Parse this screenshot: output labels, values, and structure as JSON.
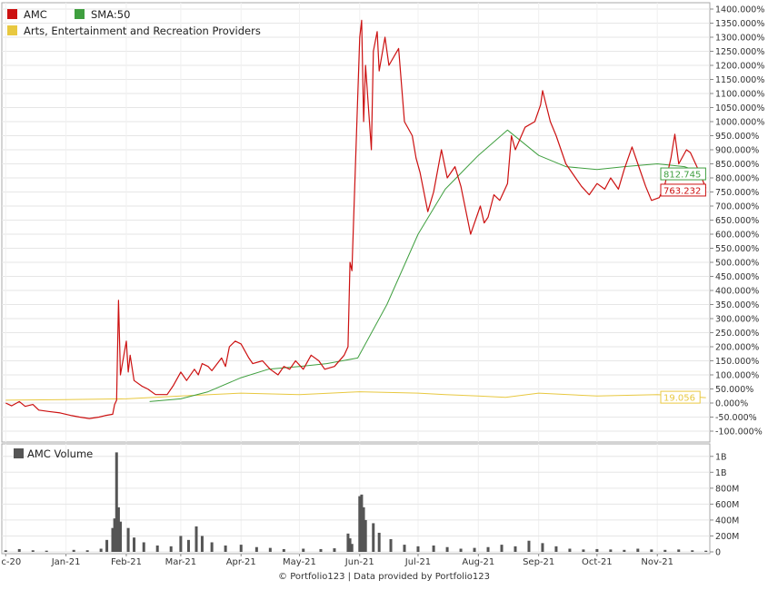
{
  "footer": "© Portfolio123 | Data provided by Portfolio123",
  "colors": {
    "amc": "#cc1111",
    "sma": "#3f9f3f",
    "industry": "#e8c840",
    "volume": "#555555",
    "grid": "#e6e6e6",
    "axis": "#888888"
  },
  "chart_data": [
    {
      "type": "line",
      "title": "",
      "legend": [
        {
          "name": "AMC",
          "color": "#cc1111"
        },
        {
          "name": "SMA:50",
          "color": "#3f9f3f"
        },
        {
          "name": "Arts, Entertainment and Recreation Providers",
          "color": "#e8c840"
        }
      ],
      "legend_position": "top-left",
      "y_unit": "%",
      "ylim": [
        -100,
        1400
      ],
      "yticks": [
        "1400.000%",
        "1350.000%",
        "1300.000%",
        "1250.000%",
        "1200.000%",
        "1150.000%",
        "1100.000%",
        "1050.000%",
        "1000.000%",
        "950.000%",
        "900.000%",
        "850.000%",
        "800.000%",
        "750.000%",
        "700.000%",
        "650.000%",
        "600.000%",
        "550.000%",
        "500.000%",
        "450.000%",
        "400.000%",
        "350.000%",
        "300.000%",
        "250.000%",
        "200.000%",
        "150.000%",
        "100.000%",
        "50.000%",
        "0.000%",
        "-50.000%",
        "-100.000%"
      ],
      "end_labels": {
        "sma": "812.745",
        "amc": "763.232",
        "industry": "19.056"
      },
      "series": [
        {
          "name": "AMC",
          "color": "#cc1111",
          "points": [
            [
              "2020-12-01",
              0
            ],
            [
              "2020-12-04",
              -10
            ],
            [
              "2020-12-08",
              5
            ],
            [
              "2020-12-11",
              -12
            ],
            [
              "2020-12-15",
              -5
            ],
            [
              "2020-12-18",
              -25
            ],
            [
              "2020-12-23",
              -30
            ],
            [
              "2020-12-29",
              -35
            ],
            [
              "2021-01-04",
              -45
            ],
            [
              "2021-01-08",
              -50
            ],
            [
              "2021-01-13",
              -55
            ],
            [
              "2021-01-18",
              -50
            ],
            [
              "2021-01-21",
              -45
            ],
            [
              "2021-01-25",
              -40
            ],
            [
              "2021-01-26",
              -5
            ],
            [
              "2021-01-27",
              10
            ],
            [
              "2021-01-28",
              365
            ],
            [
              "2021-01-29",
              100
            ],
            [
              "2021-02-01",
              220
            ],
            [
              "2021-02-02",
              110
            ],
            [
              "2021-02-03",
              170
            ],
            [
              "2021-02-05",
              80
            ],
            [
              "2021-02-09",
              60
            ],
            [
              "2021-02-12",
              50
            ],
            [
              "2021-02-16",
              30
            ],
            [
              "2021-02-22",
              30
            ],
            [
              "2021-02-25",
              60
            ],
            [
              "2021-03-01",
              110
            ],
            [
              "2021-03-04",
              80
            ],
            [
              "2021-03-08",
              120
            ],
            [
              "2021-03-10",
              100
            ],
            [
              "2021-03-12",
              140
            ],
            [
              "2021-03-15",
              130
            ],
            [
              "2021-03-17",
              115
            ],
            [
              "2021-03-22",
              160
            ],
            [
              "2021-03-24",
              130
            ],
            [
              "2021-03-26",
              200
            ],
            [
              "2021-03-29",
              220
            ],
            [
              "2021-04-01",
              210
            ],
            [
              "2021-04-05",
              160
            ],
            [
              "2021-04-07",
              140
            ],
            [
              "2021-04-12",
              150
            ],
            [
              "2021-04-16",
              120
            ],
            [
              "2021-04-20",
              100
            ],
            [
              "2021-04-23",
              130
            ],
            [
              "2021-04-26",
              120
            ],
            [
              "2021-04-29",
              150
            ],
            [
              "2021-05-03",
              120
            ],
            [
              "2021-05-07",
              170
            ],
            [
              "2021-05-11",
              150
            ],
            [
              "2021-05-14",
              120
            ],
            [
              "2021-05-19",
              130
            ],
            [
              "2021-05-24",
              170
            ],
            [
              "2021-05-26",
              200
            ],
            [
              "2021-05-27",
              500
            ],
            [
              "2021-05-28",
              470
            ],
            [
              "2021-06-01",
              1300
            ],
            [
              "2021-06-02",
              1360
            ],
            [
              "2021-06-03",
              1000
            ],
            [
              "2021-06-04",
              1200
            ],
            [
              "2021-06-07",
              900
            ],
            [
              "2021-06-08",
              1250
            ],
            [
              "2021-06-10",
              1320
            ],
            [
              "2021-06-11",
              1180
            ],
            [
              "2021-06-14",
              1300
            ],
            [
              "2021-06-16",
              1200
            ],
            [
              "2021-06-21",
              1260
            ],
            [
              "2021-06-24",
              1000
            ],
            [
              "2021-06-28",
              950
            ],
            [
              "2021-06-30",
              870
            ],
            [
              "2021-07-02",
              820
            ],
            [
              "2021-07-06",
              680
            ],
            [
              "2021-07-09",
              750
            ],
            [
              "2021-07-13",
              900
            ],
            [
              "2021-07-16",
              800
            ],
            [
              "2021-07-20",
              840
            ],
            [
              "2021-07-23",
              770
            ],
            [
              "2021-07-28",
              600
            ],
            [
              "2021-08-02",
              700
            ],
            [
              "2021-08-04",
              640
            ],
            [
              "2021-08-06",
              660
            ],
            [
              "2021-08-09",
              740
            ],
            [
              "2021-08-12",
              720
            ],
            [
              "2021-08-16",
              780
            ],
            [
              "2021-08-18",
              950
            ],
            [
              "2021-08-20",
              900
            ],
            [
              "2021-08-25",
              980
            ],
            [
              "2021-08-30",
              1000
            ],
            [
              "2021-09-02",
              1060
            ],
            [
              "2021-09-03",
              1110
            ],
            [
              "2021-09-07",
              1000
            ],
            [
              "2021-09-10",
              950
            ],
            [
              "2021-09-15",
              850
            ],
            [
              "2021-09-20",
              800
            ],
            [
              "2021-09-23",
              770
            ],
            [
              "2021-09-27",
              740
            ],
            [
              "2021-10-01",
              780
            ],
            [
              "2021-10-05",
              760
            ],
            [
              "2021-10-08",
              800
            ],
            [
              "2021-10-12",
              760
            ],
            [
              "2021-10-15",
              830
            ],
            [
              "2021-10-19",
              910
            ],
            [
              "2021-10-22",
              850
            ],
            [
              "2021-10-26",
              770
            ],
            [
              "2021-10-29",
              720
            ],
            [
              "2021-11-02",
              730
            ],
            [
              "2021-11-05",
              780
            ],
            [
              "2021-11-08",
              870
            ],
            [
              "2021-11-10",
              955
            ],
            [
              "2021-11-12",
              850
            ],
            [
              "2021-11-16",
              900
            ],
            [
              "2021-11-18",
              890
            ],
            [
              "2021-11-22",
              830
            ],
            [
              "2021-11-26",
              763.232
            ]
          ]
        },
        {
          "name": "SMA:50",
          "color": "#3f9f3f",
          "points": [
            [
              "2021-02-13",
              5
            ],
            [
              "2021-03-01",
              15
            ],
            [
              "2021-03-15",
              40
            ],
            [
              "2021-04-01",
              90
            ],
            [
              "2021-04-15",
              120
            ],
            [
              "2021-05-01",
              130
            ],
            [
              "2021-05-15",
              140
            ],
            [
              "2021-05-31",
              160
            ],
            [
              "2021-06-15",
              350
            ],
            [
              "2021-07-01",
              600
            ],
            [
              "2021-07-15",
              760
            ],
            [
              "2021-08-01",
              880
            ],
            [
              "2021-08-16",
              970
            ],
            [
              "2021-09-01",
              880
            ],
            [
              "2021-09-15",
              840
            ],
            [
              "2021-10-01",
              830
            ],
            [
              "2021-10-15",
              840
            ],
            [
              "2021-11-01",
              850
            ],
            [
              "2021-11-15",
              840
            ],
            [
              "2021-11-26",
              812.745
            ]
          ]
        },
        {
          "name": "Arts, Entertainment and Recreation Providers",
          "color": "#e8c840",
          "points": [
            [
              "2020-12-01",
              10
            ],
            [
              "2021-01-01",
              12
            ],
            [
              "2021-02-01",
              15
            ],
            [
              "2021-03-01",
              25
            ],
            [
              "2021-04-01",
              35
            ],
            [
              "2021-05-01",
              30
            ],
            [
              "2021-06-01",
              40
            ],
            [
              "2021-07-01",
              35
            ],
            [
              "2021-07-15",
              30
            ],
            [
              "2021-08-01",
              25
            ],
            [
              "2021-08-15",
              20
            ],
            [
              "2021-09-01",
              35
            ],
            [
              "2021-10-01",
              25
            ],
            [
              "2021-11-01",
              30
            ],
            [
              "2021-11-26",
              19.056
            ]
          ]
        }
      ]
    },
    {
      "type": "bar",
      "title": "",
      "legend": [
        {
          "name": "AMC Volume",
          "color": "#555555"
        }
      ],
      "legend_position": "top-left",
      "ylim": [
        0,
        1300
      ],
      "yticks": [
        "1B",
        "1B",
        "800M",
        "600M",
        "400M",
        "200M",
        "0"
      ],
      "y_unit": "M shares",
      "x_tick_labels": [
        "c-20",
        "Jan-21",
        "Feb-21",
        "Mar-21",
        "Apr-21",
        "May-21",
        "Jun-21",
        "Jul-21",
        "Aug-21",
        "Sep-21",
        "Oct-21",
        "Nov-21"
      ],
      "series": [
        {
          "name": "AMC Volume",
          "color": "#555555",
          "points": [
            [
              "2020-12-01",
              20
            ],
            [
              "2020-12-08",
              35
            ],
            [
              "2020-12-15",
              20
            ],
            [
              "2020-12-22",
              15
            ],
            [
              "2021-01-05",
              25
            ],
            [
              "2021-01-12",
              20
            ],
            [
              "2021-01-19",
              40
            ],
            [
              "2021-01-22",
              150
            ],
            [
              "2021-01-25",
              300
            ],
            [
              "2021-01-26",
              420
            ],
            [
              "2021-01-27",
              1250
            ],
            [
              "2021-01-28",
              560
            ],
            [
              "2021-01-29",
              380
            ],
            [
              "2021-02-02",
              300
            ],
            [
              "2021-02-05",
              180
            ],
            [
              "2021-02-10",
              120
            ],
            [
              "2021-02-17",
              80
            ],
            [
              "2021-02-24",
              70
            ],
            [
              "2021-03-01",
              200
            ],
            [
              "2021-03-05",
              150
            ],
            [
              "2021-03-09",
              320
            ],
            [
              "2021-03-12",
              200
            ],
            [
              "2021-03-17",
              120
            ],
            [
              "2021-03-24",
              80
            ],
            [
              "2021-04-01",
              90
            ],
            [
              "2021-04-09",
              60
            ],
            [
              "2021-04-16",
              50
            ],
            [
              "2021-04-23",
              35
            ],
            [
              "2021-05-03",
              40
            ],
            [
              "2021-05-12",
              35
            ],
            [
              "2021-05-19",
              45
            ],
            [
              "2021-05-26",
              230
            ],
            [
              "2021-05-27",
              170
            ],
            [
              "2021-05-28",
              100
            ],
            [
              "2021-06-01",
              700
            ],
            [
              "2021-06-02",
              720
            ],
            [
              "2021-06-03",
              560
            ],
            [
              "2021-06-04",
              400
            ],
            [
              "2021-06-08",
              360
            ],
            [
              "2021-06-11",
              240
            ],
            [
              "2021-06-17",
              160
            ],
            [
              "2021-06-24",
              90
            ],
            [
              "2021-07-01",
              70
            ],
            [
              "2021-07-09",
              80
            ],
            [
              "2021-07-16",
              60
            ],
            [
              "2021-07-23",
              40
            ],
            [
              "2021-07-30",
              50
            ],
            [
              "2021-08-06",
              60
            ],
            [
              "2021-08-13",
              90
            ],
            [
              "2021-08-20",
              70
            ],
            [
              "2021-08-27",
              140
            ],
            [
              "2021-09-03",
              110
            ],
            [
              "2021-09-10",
              70
            ],
            [
              "2021-09-17",
              40
            ],
            [
              "2021-09-24",
              30
            ],
            [
              "2021-10-01",
              35
            ],
            [
              "2021-10-08",
              30
            ],
            [
              "2021-10-15",
              25
            ],
            [
              "2021-10-22",
              40
            ],
            [
              "2021-10-29",
              30
            ],
            [
              "2021-11-05",
              25
            ],
            [
              "2021-11-12",
              30
            ],
            [
              "2021-11-19",
              20
            ],
            [
              "2021-11-26",
              15
            ]
          ]
        }
      ]
    }
  ]
}
